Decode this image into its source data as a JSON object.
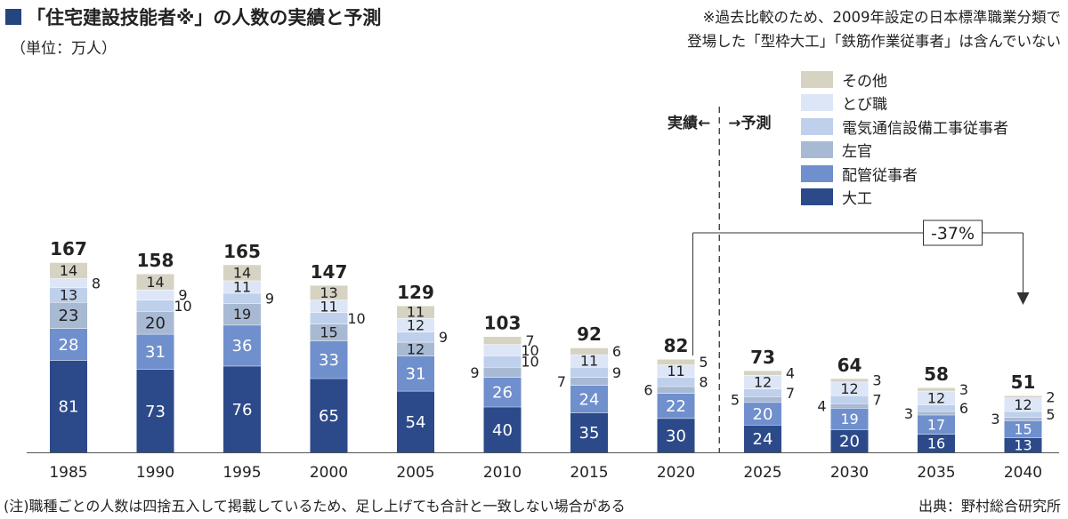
{
  "header": {
    "title": "「住宅建設技能者※」の人数の実績と予測",
    "unit": "（単位：万人）",
    "note_line1": "※過去比較のため、2009年設定の日本標準職業分類で",
    "note_line2": "登場した「型枠大工」「鉄筋作業従事者」は含んでいない"
  },
  "footer": {
    "note": "(注)職種ごとの人数は四捨五入して掲載しているため、足し上げても合計と一致しない場合がある",
    "source": "出典：野村総合研究所"
  },
  "colors": {
    "title_square": "#24457f",
    "大工": "#2c4a8a",
    "配管従事者": "#6f8fcd",
    "左官": "#a8b9d3",
    "電気通信設備工事従事者": "#bfd0ec",
    "とび職": "#dde6f7",
    "その他": "#d6d3c3"
  },
  "chart_data": {
    "type": "bar",
    "stacked": true,
    "categories": [
      "1985",
      "1990",
      "1995",
      "2000",
      "2005",
      "2010",
      "2015",
      "2020",
      "2025",
      "2030",
      "2035",
      "2040"
    ],
    "series": [
      {
        "name": "大工",
        "values": [
          81,
          73,
          76,
          65,
          54,
          40,
          35,
          30,
          24,
          20,
          16,
          13
        ]
      },
      {
        "name": "配管従事者",
        "values": [
          28,
          31,
          36,
          33,
          31,
          26,
          24,
          22,
          20,
          19,
          17,
          15
        ]
      },
      {
        "name": "左官",
        "values": [
          23,
          20,
          19,
          15,
          12,
          9,
          7,
          6,
          5,
          4,
          3,
          3
        ]
      },
      {
        "name": "電気通信設備工事従事者",
        "values": [
          13,
          10,
          9,
          10,
          9,
          10,
          9,
          8,
          7,
          7,
          6,
          5
        ]
      },
      {
        "name": "とび職",
        "values": [
          8,
          9,
          11,
          11,
          12,
          10,
          11,
          11,
          12,
          12,
          12,
          12
        ]
      },
      {
        "name": "その他",
        "values": [
          14,
          14,
          14,
          13,
          11,
          7,
          6,
          5,
          4,
          3,
          3,
          2
        ]
      }
    ],
    "totals": [
      167,
      158,
      165,
      147,
      129,
      103,
      92,
      82,
      73,
      64,
      58,
      51
    ],
    "ylim": [
      0,
      175
    ],
    "divider": {
      "after_category": "2020",
      "left_label": "実績←",
      "right_label": "→予測"
    },
    "annotation": {
      "text": "-37%",
      "from": "2020",
      "to": "2040"
    }
  }
}
